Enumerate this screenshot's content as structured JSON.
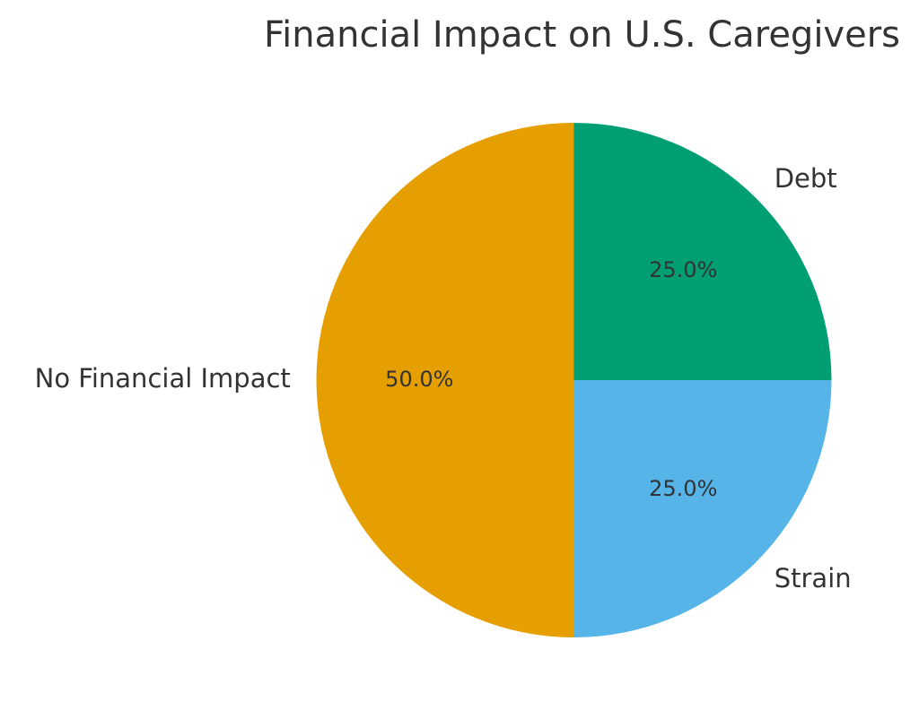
{
  "chart_data": {
    "type": "pie",
    "title": "Financial Impact on U.S. Caregivers",
    "slices": [
      {
        "label": "Debt",
        "value": 25.0,
        "percent_label": "25.0%",
        "color": "#009E73"
      },
      {
        "label": "Strain",
        "value": 25.0,
        "percent_label": "25.0%",
        "color": "#56B4E9"
      },
      {
        "label": "No Financial Impact",
        "value": 50.0,
        "percent_label": "50.0%",
        "color": "#E69F00"
      }
    ],
    "start_angle": "12 o'clock",
    "direction": "clockwise",
    "legend": "none"
  }
}
